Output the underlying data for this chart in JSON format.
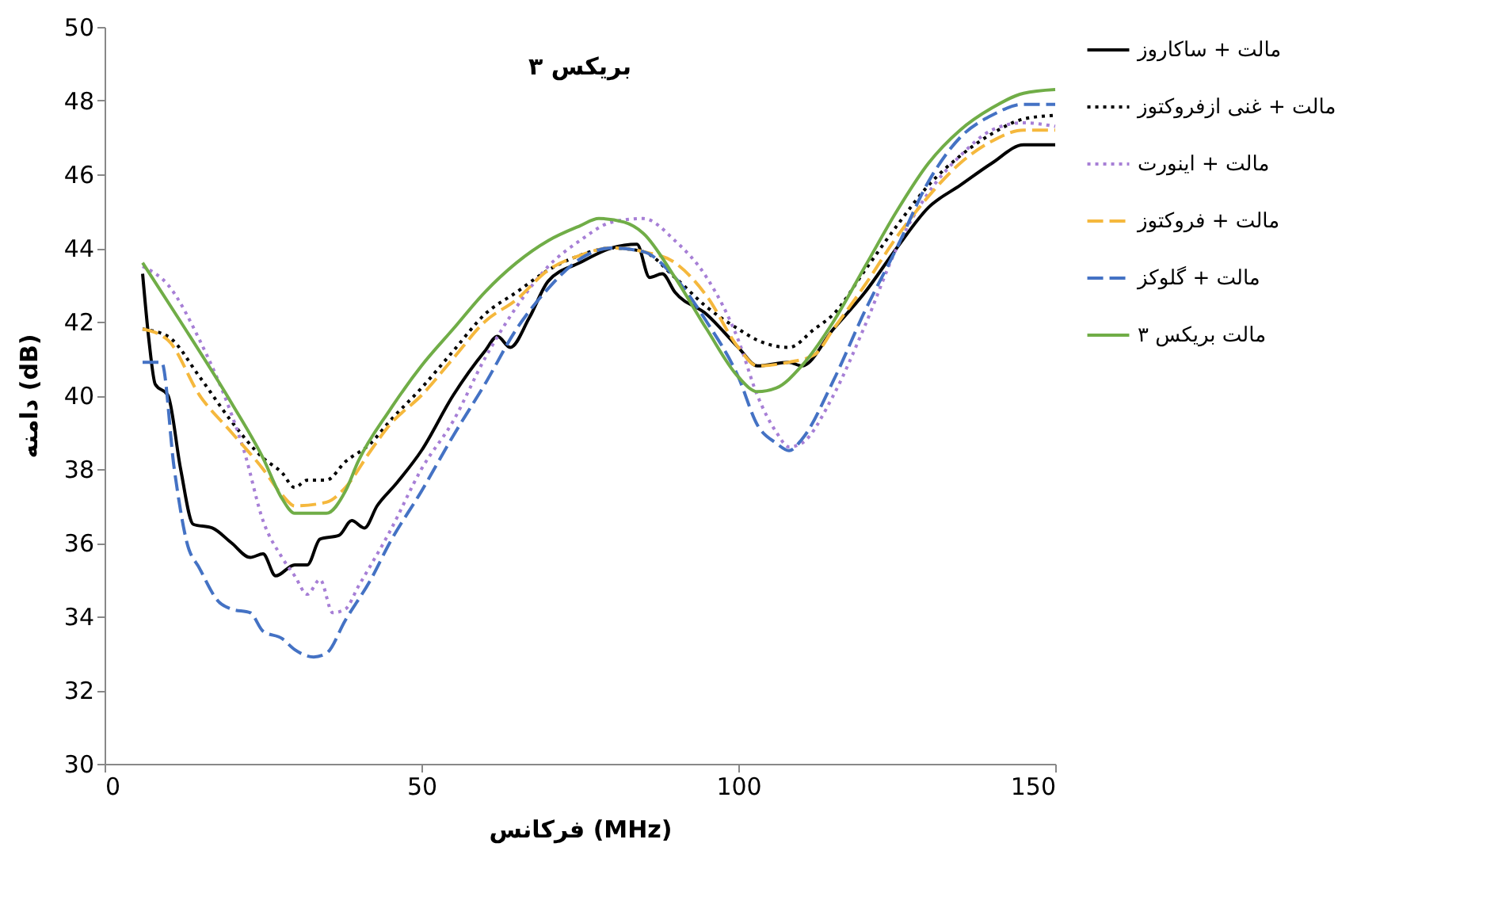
{
  "chart_data": {
    "type": "line",
    "title": "بریکس ۳",
    "xlabel": "فرکانس (MHz)",
    "ylabel": "دامنه (dB)",
    "xlim": [
      0,
      150
    ],
    "xticks": [
      0,
      50,
      100,
      150
    ],
    "ylim": [
      30,
      50
    ],
    "yticks": [
      30,
      32,
      34,
      36,
      38,
      40,
      42,
      44,
      46,
      48,
      50
    ],
    "grid": false,
    "legend": "right",
    "marker": "none",
    "series": [
      {
        "name": "مالت + ساکاروز",
        "color": "#000000",
        "line_style": "solid",
        "x": [
          6,
          7,
          8,
          10,
          12,
          14,
          17,
          20,
          23,
          25,
          27,
          30,
          32,
          34,
          37,
          39,
          41,
          43,
          46,
          50,
          55,
          60,
          62,
          64,
          67,
          70,
          75,
          80,
          84,
          86,
          88,
          90,
          95,
          100,
          103,
          108,
          110,
          115,
          120,
          125,
          130,
          135,
          140,
          145,
          150
        ],
        "values": [
          43.3,
          41.5,
          40.3,
          40,
          38,
          36.5,
          36.4,
          36,
          35.6,
          35.7,
          35.1,
          35.4,
          35.4,
          36.1,
          36.2,
          36.6,
          36.4,
          37,
          37.6,
          38.5,
          40,
          41.2,
          41.6,
          41.3,
          42.1,
          43.1,
          43.6,
          44,
          44.1,
          43.2,
          43.3,
          42.8,
          42.2,
          41.3,
          40.8,
          40.9,
          40.8,
          41.8,
          42.8,
          44,
          45.1,
          45.7,
          46.3,
          46.8,
          46.8
        ]
      },
      {
        "name": "مالت + غنی ازفروکتوز",
        "color": "#000000",
        "line_style": "dotted",
        "x": [
          6,
          10,
          15,
          20,
          25,
          28,
          30,
          32,
          35,
          38,
          42,
          45,
          50,
          55,
          60,
          65,
          70,
          75,
          80,
          85,
          90,
          95,
          100,
          103,
          108,
          112,
          115,
          120,
          125,
          130,
          135,
          140,
          145,
          150
        ],
        "values": [
          41.8,
          41.6,
          40.5,
          39.3,
          38.3,
          37.9,
          37.5,
          37.7,
          37.7,
          38.2,
          38.7,
          39.3,
          40.2,
          41.2,
          42.2,
          42.8,
          43.4,
          43.8,
          44,
          43.9,
          43.2,
          42.4,
          41.8,
          41.5,
          41.3,
          41.8,
          42.2,
          43.4,
          44.6,
          45.7,
          46.5,
          47.1,
          47.5,
          47.6
        ]
      },
      {
        "name": "مالت + اینورت",
        "color": "#a77fd6",
        "line_style": "dotted",
        "x": [
          6,
          10,
          15,
          20,
          22,
          25,
          28,
          30,
          32,
          34,
          36,
          38,
          40,
          45,
          50,
          55,
          60,
          65,
          70,
          75,
          80,
          85,
          90,
          95,
          100,
          103,
          106,
          108,
          110,
          115,
          120,
          125,
          130,
          135,
          140,
          145,
          150
        ],
        "values": [
          43.5,
          43,
          41.5,
          39.5,
          38.5,
          36.6,
          35.6,
          35.1,
          34.6,
          35,
          34.1,
          34.2,
          34.8,
          36.3,
          38,
          39.3,
          41,
          42.4,
          43.5,
          44.2,
          44.7,
          44.8,
          44.2,
          43.2,
          41.5,
          40,
          39,
          38.6,
          38.7,
          40,
          41.9,
          44,
          45.5,
          46.5,
          47.2,
          47.4,
          47.3
        ]
      },
      {
        "name": "مالت + فروکتوز",
        "color": "#f5b83d",
        "line_style": "dashed",
        "x": [
          6,
          10,
          15,
          20,
          25,
          28,
          30,
          35,
          38,
          42,
          45,
          50,
          55,
          60,
          65,
          70,
          75,
          80,
          85,
          90,
          95,
          100,
          103,
          108,
          112,
          115,
          120,
          125,
          130,
          135,
          140,
          145,
          150
        ],
        "values": [
          41.8,
          41.5,
          40,
          39,
          38,
          37.3,
          37,
          37.1,
          37.5,
          38.5,
          39.2,
          40,
          41,
          42,
          42.6,
          43.4,
          43.8,
          44,
          43.9,
          43.6,
          42.7,
          41.3,
          40.8,
          40.9,
          41.1,
          41.8,
          43,
          44.3,
          45.4,
          46.3,
          46.9,
          47.2,
          47.2
        ]
      },
      {
        "name": "مالت + گلوکز",
        "color": "#4472c4",
        "line_style": "dashed",
        "x": [
          6,
          9,
          11,
          13,
          15,
          18,
          20,
          23,
          25,
          28,
          30,
          33,
          35,
          38,
          42,
          45,
          50,
          55,
          60,
          65,
          70,
          75,
          80,
          85,
          90,
          95,
          100,
          103,
          106,
          108,
          110,
          115,
          120,
          125,
          130,
          135,
          140,
          145,
          150
        ],
        "values": [
          40.9,
          40.9,
          38,
          36,
          35.3,
          34.4,
          34.2,
          34.1,
          33.6,
          33.4,
          33.1,
          32.9,
          33,
          33.9,
          35,
          36,
          37.4,
          38.9,
          40.3,
          41.8,
          42.9,
          43.7,
          44,
          43.9,
          43.2,
          42,
          40.5,
          39.2,
          38.7,
          38.5,
          38.8,
          40.4,
          42.3,
          44,
          45.8,
          47,
          47.6,
          47.9,
          47.9
        ]
      },
      {
        "name": "مالت بریکس ۳",
        "color": "#70ad47",
        "line_style": "solid",
        "x": [
          6,
          12,
          20,
          25,
          28,
          30,
          35,
          38,
          40,
          45,
          50,
          55,
          60,
          65,
          70,
          75,
          78,
          82,
          85,
          90,
          95,
          100,
          103,
          106,
          110,
          115,
          120,
          125,
          130,
          135,
          140,
          145,
          150
        ],
        "values": [
          43.6,
          42,
          39.8,
          38.3,
          37.2,
          36.8,
          36.8,
          37.4,
          38.2,
          39.6,
          40.8,
          41.8,
          42.8,
          43.6,
          44.2,
          44.6,
          44.8,
          44.7,
          44.4,
          43.2,
          41.8,
          40.5,
          40.1,
          40.2,
          40.8,
          42,
          43.5,
          45,
          46.3,
          47.2,
          47.8,
          48.2,
          48.3
        ]
      }
    ]
  }
}
